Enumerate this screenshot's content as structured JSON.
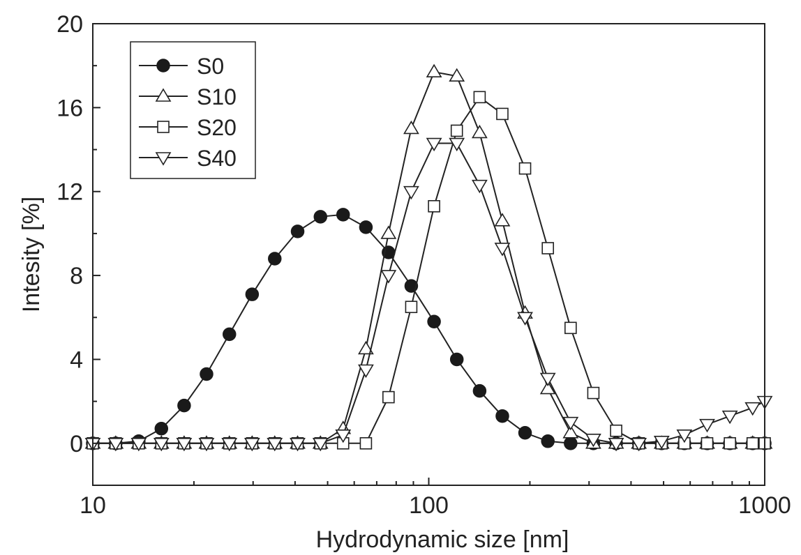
{
  "chart_data": {
    "type": "line",
    "title": "",
    "xlabel": "Hydrodynamic size [nm]",
    "ylabel": "Intesity [%]",
    "xscale": "log",
    "xlim": [
      10,
      1000
    ],
    "ylim": [
      -2,
      20
    ],
    "xticks": [
      10,
      100,
      1000
    ],
    "xtick_labels": [
      "10",
      "100",
      "1000"
    ],
    "yticks": [
      0,
      4,
      8,
      12,
      16,
      20
    ],
    "ytick_labels": [
      "0",
      "4",
      "8",
      "12",
      "16",
      "20"
    ],
    "grid": false,
    "legend_position": "top-left",
    "series": [
      {
        "name": "S0",
        "marker": "filled-circle",
        "x": [
          10,
          11.7,
          13.7,
          16.0,
          18.7,
          21.8,
          25.5,
          29.8,
          34.8,
          40.7,
          47.6,
          55.6,
          65.0,
          75.9,
          88.7,
          103.7,
          121.2,
          141.7,
          165.6,
          193.5,
          226.2,
          264.4,
          309.0,
          361.2,
          422.1,
          493.4,
          576.6,
          674.0,
          787.7,
          920.6,
          1000
        ],
        "y": [
          0,
          0,
          0.1,
          0.7,
          1.8,
          3.3,
          5.2,
          7.1,
          8.8,
          10.1,
          10.8,
          10.9,
          10.3,
          9.1,
          7.5,
          5.8,
          4.0,
          2.5,
          1.3,
          0.5,
          0.1,
          0,
          0,
          0,
          0,
          0,
          0,
          0,
          0,
          0,
          0
        ]
      },
      {
        "name": "S10",
        "marker": "open-triangle-up",
        "x": [
          10,
          11.7,
          13.7,
          16.0,
          18.7,
          21.8,
          25.5,
          29.8,
          34.8,
          40.7,
          47.6,
          55.6,
          65.0,
          75.9,
          88.7,
          103.7,
          121.2,
          141.7,
          165.6,
          193.5,
          226.2,
          264.4,
          309.0,
          361.2,
          422.1,
          493.4,
          576.6,
          674.0,
          787.7,
          920.6,
          1000
        ],
        "y": [
          0,
          0,
          0,
          0,
          0,
          0,
          0,
          0,
          0,
          0,
          0,
          0.7,
          4.5,
          10.0,
          15.0,
          17.7,
          17.5,
          14.8,
          10.6,
          6.2,
          2.6,
          0.5,
          0,
          0,
          0,
          0,
          0,
          0,
          0,
          0,
          0
        ]
      },
      {
        "name": "S20",
        "marker": "open-square",
        "x": [
          10,
          11.7,
          13.7,
          16.0,
          18.7,
          21.8,
          25.5,
          29.8,
          34.8,
          40.7,
          47.6,
          55.6,
          65.0,
          75.9,
          88.7,
          103.7,
          121.2,
          141.7,
          165.6,
          193.5,
          226.2,
          264.4,
          309.0,
          361.2,
          422.1,
          493.4,
          576.6,
          674.0,
          787.7,
          920.6,
          1000
        ],
        "y": [
          0,
          0,
          0,
          0,
          0,
          0,
          0,
          0,
          0,
          0,
          0,
          0,
          0,
          2.2,
          6.5,
          11.3,
          14.9,
          16.5,
          15.7,
          13.1,
          9.3,
          5.5,
          2.4,
          0.6,
          0,
          0,
          0,
          0,
          0,
          0,
          0
        ]
      },
      {
        "name": "S40",
        "marker": "open-triangle-down",
        "x": [
          10,
          11.7,
          13.7,
          16.0,
          18.7,
          21.8,
          25.5,
          29.8,
          34.8,
          40.7,
          47.6,
          55.6,
          65.0,
          75.9,
          88.7,
          103.7,
          121.2,
          141.7,
          165.6,
          193.5,
          226.2,
          264.4,
          309.0,
          361.2,
          422.1,
          493.4,
          576.6,
          674.0,
          787.7,
          920.6,
          1000
        ],
        "y": [
          0,
          0,
          0,
          0,
          0,
          0,
          0,
          0,
          0,
          0,
          0,
          0.4,
          3.5,
          8.0,
          12.0,
          14.3,
          14.3,
          12.3,
          9.3,
          6.0,
          3.1,
          1.0,
          0.2,
          0,
          0,
          0.1,
          0.4,
          0.9,
          1.3,
          1.7,
          2.0
        ]
      }
    ]
  }
}
